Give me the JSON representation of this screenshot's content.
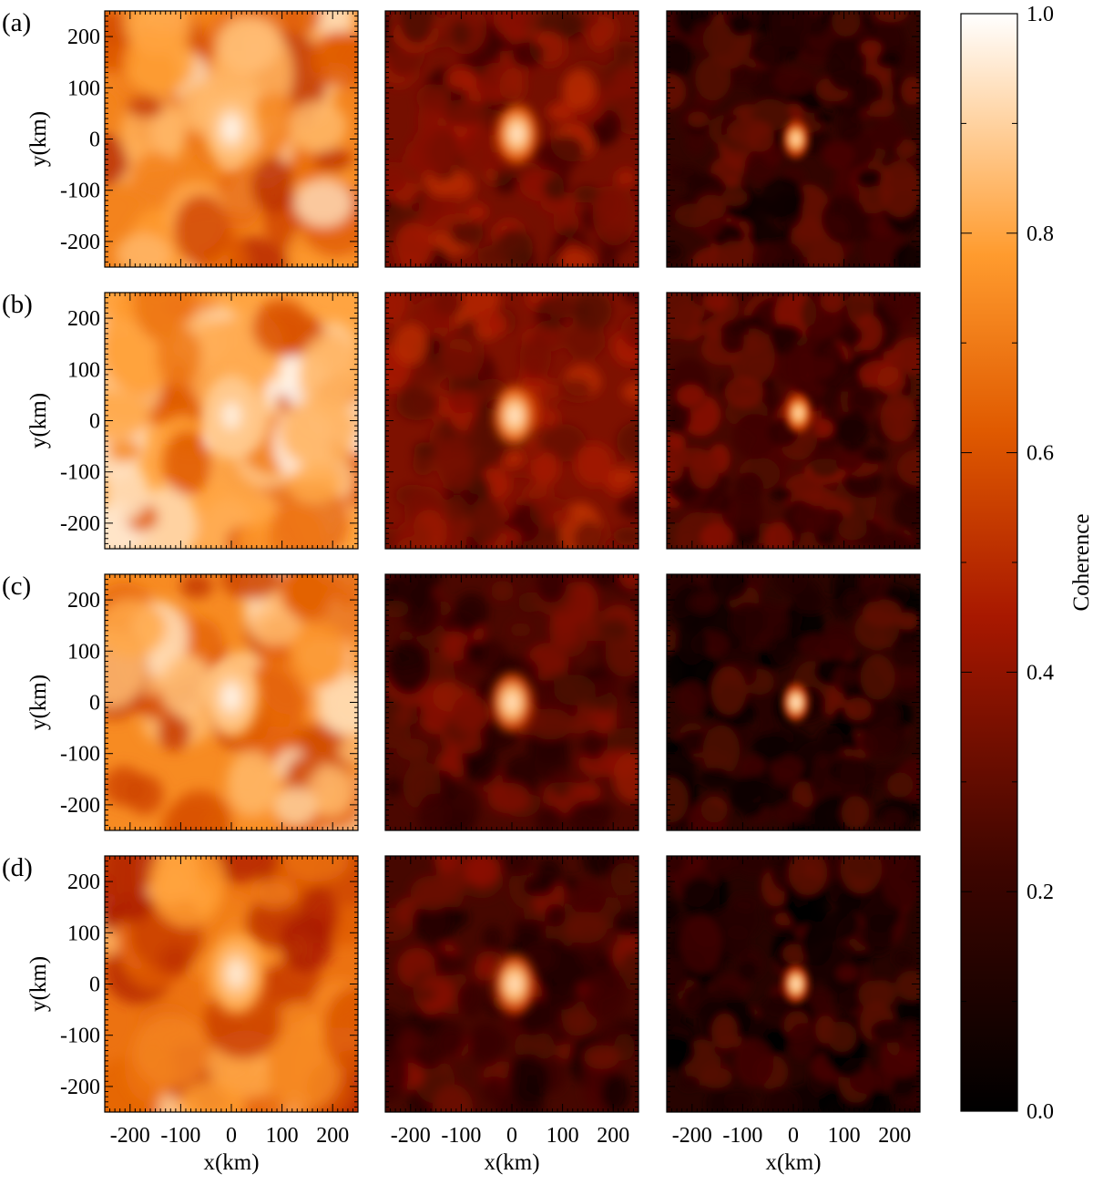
{
  "chart_data": {
    "type": "heatmap",
    "description": "4 x 3 grid of coherence maps; rows labelled (a)-(d); shared colour bar",
    "row_labels": [
      "(a)",
      "(b)",
      "(c)",
      "(d)"
    ],
    "xlabel": "x(km)",
    "ylabel": "y(km)",
    "xlim": [
      -250,
      250
    ],
    "ylim": [
      -250,
      250
    ],
    "x_ticks": [
      -200,
      -100,
      0,
      100,
      200
    ],
    "x_tick_labels": [
      "-200",
      "-100",
      "0",
      "100",
      "200"
    ],
    "y_ticks": [
      200,
      100,
      0,
      -100,
      -200
    ],
    "y_tick_labels": [
      "200",
      "100",
      "0",
      "-100",
      "-200"
    ],
    "colorbar": {
      "label": "Coherence",
      "range": [
        0.0,
        1.0
      ],
      "ticks": [
        1.0,
        0.8,
        0.6,
        0.4,
        0.2,
        0.0
      ],
      "tick_labels": [
        "1.0",
        "0.8",
        "0.6",
        "0.4",
        "0.2",
        "0.0"
      ],
      "colormap": "hot (black - dark red - orange - white)",
      "stops": [
        {
          "v": 0.0,
          "color": "#000000"
        },
        {
          "v": 0.22,
          "color": "#3d0500"
        },
        {
          "v": 0.45,
          "color": "#a81800"
        },
        {
          "v": 0.62,
          "color": "#e05a00"
        },
        {
          "v": 0.78,
          "color": "#ff9b2e"
        },
        {
          "v": 0.9,
          "color": "#ffd2a0"
        },
        {
          "v": 1.0,
          "color": "#ffffff"
        }
      ]
    },
    "panels": [
      {
        "row": "(a)",
        "col": 1,
        "background": 0.72,
        "center_peak": 0.97,
        "peak_x": 0,
        "peak_y": 20
      },
      {
        "row": "(a)",
        "col": 2,
        "background": 0.34,
        "center_peak": 0.93,
        "peak_x": 10,
        "peak_y": 10
      },
      {
        "row": "(a)",
        "col": 3,
        "background": 0.18,
        "center_peak": 0.9,
        "peak_x": 5,
        "peak_y": 0
      },
      {
        "row": "(b)",
        "col": 1,
        "background": 0.8,
        "center_peak": 0.96,
        "peak_x": 0,
        "peak_y": 10
      },
      {
        "row": "(b)",
        "col": 2,
        "background": 0.36,
        "center_peak": 0.93,
        "peak_x": 5,
        "peak_y": 10
      },
      {
        "row": "(b)",
        "col": 3,
        "background": 0.24,
        "center_peak": 0.9,
        "peak_x": 10,
        "peak_y": 15
      },
      {
        "row": "(c)",
        "col": 1,
        "background": 0.74,
        "center_peak": 0.97,
        "peak_x": 0,
        "peak_y": 10
      },
      {
        "row": "(c)",
        "col": 2,
        "background": 0.25,
        "center_peak": 0.92,
        "peak_x": 0,
        "peak_y": 0
      },
      {
        "row": "(c)",
        "col": 3,
        "background": 0.16,
        "center_peak": 0.93,
        "peak_x": 5,
        "peak_y": 0
      },
      {
        "row": "(d)",
        "col": 1,
        "background": 0.68,
        "center_peak": 0.95,
        "peak_x": 10,
        "peak_y": 20
      },
      {
        "row": "(d)",
        "col": 2,
        "background": 0.24,
        "center_peak": 0.92,
        "peak_x": 5,
        "peak_y": 0
      },
      {
        "row": "(d)",
        "col": 3,
        "background": 0.14,
        "center_peak": 0.92,
        "peak_x": 5,
        "peak_y": 0
      }
    ]
  }
}
